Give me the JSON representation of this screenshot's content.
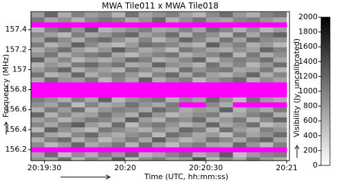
{
  "chart_data": {
    "type": "heatmap",
    "title": "MWA Tile011 x MWA Tile018",
    "x_label": "Time (UTC, hh:mm:ss)",
    "y_label": "Frequency (MHz)",
    "colorbar_label": "Visibility (Jy, uncalibrated)",
    "colormap": "gray_r",
    "bad_color": "#ff00ff",
    "x": [
      73167.5,
      73172.5,
      73177.5,
      73182.5,
      73187.5,
      73192.5,
      73197.5,
      73202.5,
      73207.5,
      73212.5,
      73217.5,
      73222.5,
      73227.5,
      73232.5,
      73237.5,
      73242.5,
      73247.5,
      73252.5,
      73257.5
    ],
    "y": [
      156.1,
      156.15,
      156.2,
      156.25,
      156.3,
      156.35,
      156.4,
      156.45,
      156.5,
      156.55,
      156.6,
      156.65,
      156.7,
      156.75,
      156.8,
      156.85,
      156.9,
      156.95,
      157.0,
      157.05,
      157.1,
      157.15,
      157.2,
      157.25,
      157.3,
      157.35,
      157.4,
      157.45,
      157.5,
      157.55
    ],
    "z": [
      [
        820,
        640,
        1100,
        560,
        930,
        720,
        1240,
        480,
        860,
        1010,
        690,
        770,
        1320,
        540,
        900,
        660,
        1080,
        750,
        610
      ],
      [
        700,
        1150,
        520,
        880,
        640,
        1030,
        790,
        1210,
        580,
        720,
        960,
        1110,
        630,
        850,
        1270,
        500,
        780,
        940,
        1020
      ],
      [
        null,
        null,
        null,
        null,
        null,
        null,
        null,
        null,
        null,
        null,
        null,
        null,
        null,
        null,
        null,
        null,
        null,
        null,
        null
      ],
      [
        910,
        560,
        780,
        1200,
        670,
        840,
        1060,
        590,
        1130,
        760,
        520,
        880,
        1010,
        700,
        640,
        1180,
        830,
        560,
        990
      ],
      [
        640,
        980,
        1140,
        610,
        890,
        530,
        760,
        1020,
        680,
        1250,
        830,
        590,
        740,
        1090,
        920,
        670,
        1040,
        1210,
        720
      ],
      [
        1080,
        720,
        590,
        930,
        1170,
        800,
        640,
        870,
        1000,
        560,
        1120,
        950,
        680,
        800,
        530,
        990,
        710,
        860,
        1150
      ],
      [
        560,
        1230,
        860,
        700,
        540,
        1060,
        920,
        750,
        610,
        890,
        700,
        1180,
        1040,
        590,
        1120,
        780,
        640,
        1000,
        830
      ],
      [
        950,
        680,
        1010,
        1270,
        780,
        620,
        1150,
        540,
        930,
        1060,
        840,
        600,
        760,
        1200,
        690,
        870,
        1130,
        540,
        700
      ],
      [
        730,
        880,
        600,
        820,
        1040,
        960,
        690,
        1250,
        770,
        620,
        1010,
        880,
        1150,
        660,
        820,
        1060,
        590,
        920,
        1180
      ],
      [
        1190,
        610,
        940,
        680,
        760,
        1100,
        850,
        640,
        1210,
        830,
        570,
        730,
        900,
        1030,
        580,
        710,
        980,
        1110,
        640
      ],
      [
        620,
        1040,
        770,
        1130,
        590,
        830,
        1000,
        920,
        680,
        1160,
        940,
        660,
        810,
        740,
        1240,
        600,
        850,
        690,
        1020
      ],
      [
        880,
        720,
        1060,
        540,
        970,
        650,
        780,
        1110,
        850,
        700,
        1030,
        null,
        null,
        920,
        640,
        null,
        null,
        null,
        null
      ],
      [
        1020,
        870,
        640,
        990,
        710,
        1220,
        560,
        830,
        960,
        1080,
        620,
        900,
        740,
        1170,
        860,
        530,
        1100,
        780,
        650
      ],
      [
        null,
        null,
        null,
        null,
        null,
        null,
        null,
        null,
        null,
        null,
        null,
        null,
        null,
        null,
        null,
        null,
        null,
        null,
        null
      ],
      [
        null,
        null,
        null,
        null,
        null,
        null,
        null,
        null,
        null,
        null,
        null,
        null,
        null,
        null,
        null,
        null,
        null,
        null,
        null
      ],
      [
        null,
        null,
        null,
        null,
        null,
        null,
        null,
        null,
        null,
        null,
        null,
        null,
        null,
        null,
        null,
        null,
        null,
        null,
        null
      ],
      [
        670,
        1140,
        830,
        760,
        1060,
        590,
        940,
        700,
        1230,
        640,
        870,
        1010,
        560,
        820,
        980,
        1150,
        620,
        890,
        740
      ],
      [
        1100,
        590,
        710,
        1190,
        640,
        880,
        1030,
        810,
        570,
        950,
        1180,
        690,
        1060,
        740,
        610,
        830,
        1200,
        660,
        960
      ],
      [
        780,
        960,
        1200,
        620,
        850,
        740,
        610,
        1090,
        890,
        720,
        600,
        1130,
        840,
        990,
        1070,
        680,
        760,
        1040,
        580
      ],
      [
        590,
        830,
        680,
        1040,
        1160,
        920,
        1080,
        650,
        740,
        1210,
        860,
        770,
        620,
        1100,
        720,
        940,
        580,
        820,
        1130
      ],
      [
        1230,
        700,
        950,
        570,
        780,
        640,
        850,
        1170,
        1000,
        610,
        730,
        940,
        1190,
        580,
        860,
        1020,
        900,
        1130,
        700
      ],
      [
        840,
        1070,
        620,
        890,
        1010,
        1130,
        700,
        560,
        820,
        970,
        1090,
        620,
        780,
        930,
        1160,
        590,
        1050,
        640,
        880
      ],
      [
        650,
        880,
        1130,
        760,
        590,
        830,
        1240,
        940,
        670,
        800,
        550,
        1060,
        900,
        720,
        640,
        870,
        730,
        1190,
        990
      ],
      [
        1010,
        610,
        790,
        1220,
        920,
        680,
        560,
        790,
        1120,
        1040,
        930,
        710,
        600,
        1250,
        820,
        1000,
        640,
        800,
        560
      ],
      [
        720,
        1180,
        900,
        640,
        1030,
        1150,
        870,
        620,
        960,
        580,
        810,
        1200,
        940,
        670,
        1080,
        730,
        1160,
        910,
        840
      ],
      [
        930,
        760,
        550,
        1010,
        700,
        820,
        1060,
        1190,
        740,
        890,
        1150,
        640,
        1020,
        860,
        580,
        1110,
        690,
        1040,
        1220
      ],
      [
        580,
        990,
        1150,
        830,
        1240,
        600,
        730,
        880,
        1010,
        690,
        760,
        980,
        720,
        1130,
        950,
        620,
        880,
        570,
        760
      ],
      [
        null,
        null,
        null,
        null,
        null,
        null,
        null,
        null,
        null,
        null,
        null,
        null,
        null,
        null,
        null,
        null,
        null,
        null,
        null
      ],
      [
        1060,
        700,
        860,
        620,
        930,
        1070,
        980,
        640,
        830,
        1180,
        620,
        870,
        1090,
        760,
        690,
        940,
        1020,
        810,
        670
      ],
      [
        770,
        1210,
        640,
        980,
        760,
        880,
        590,
        1100,
        720,
        850,
        1000,
        740,
        580,
        920,
        1140,
        800,
        620,
        980,
        1090
      ]
    ],
    "xlim": [
      73165,
      73261
    ],
    "xticks": [
      {
        "value": 73170,
        "label": "20:19:30"
      },
      {
        "value": 73200,
        "label": "20:20"
      },
      {
        "value": 73230,
        "label": "20:20:30"
      },
      {
        "value": 73260,
        "label": "20:21"
      }
    ],
    "ylim": [
      156.09,
      157.58
    ],
    "yticks": [
      156.2,
      156.4,
      156.6,
      156.8,
      157,
      157.2,
      157.4
    ],
    "zlim": [
      0,
      2000
    ],
    "zticks": [
      0,
      200,
      400,
      600,
      800,
      1000,
      1200,
      1400,
      1600,
      1800,
      2000
    ]
  }
}
